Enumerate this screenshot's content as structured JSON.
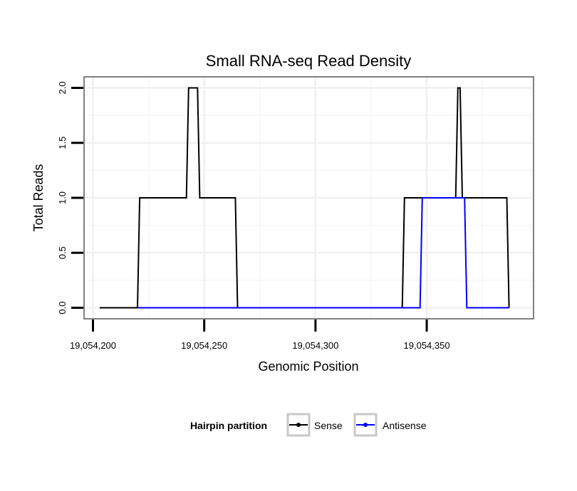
{
  "chart_data": {
    "type": "line",
    "title": "Small RNA-seq Read Density",
    "xlabel": "Genomic Position",
    "ylabel": "Total Reads",
    "xlim": [
      19054196,
      19054398
    ],
    "ylim": [
      -0.1,
      2.1
    ],
    "x_ticks": [
      19054200,
      19054250,
      19054300,
      19054350
    ],
    "x_tick_labels": [
      "19,054,200",
      "19,054,250",
      "19,054,300",
      "19,054,350"
    ],
    "y_ticks": [
      0.0,
      0.5,
      1.0,
      1.5,
      2.0
    ],
    "y_tick_labels": [
      "0.0",
      "0.5",
      "1.0",
      "1.5",
      "2.0"
    ],
    "grid": true,
    "legend": {
      "title": "Hairpin partition",
      "position": "bottom"
    },
    "series": [
      {
        "name": "Sense",
        "color": "#000000",
        "x": [
          19054203,
          19054220,
          19054221,
          19054242,
          19054243,
          19054247,
          19054248,
          19054264,
          19054265,
          19054339,
          19054340,
          19054363,
          19054364,
          19054365,
          19054366,
          19054386,
          19054387
        ],
        "y": [
          0,
          0,
          1,
          1,
          2,
          2,
          1,
          1,
          0,
          0,
          1,
          1,
          2,
          2,
          1,
          1,
          0
        ]
      },
      {
        "name": "Antisense",
        "color": "#0000ff",
        "x": [
          19054220,
          19054264,
          19054265,
          19054347,
          19054348,
          19054367,
          19054368,
          19054387
        ],
        "y": [
          0,
          0,
          0,
          0,
          1,
          1,
          0,
          0
        ]
      }
    ]
  }
}
